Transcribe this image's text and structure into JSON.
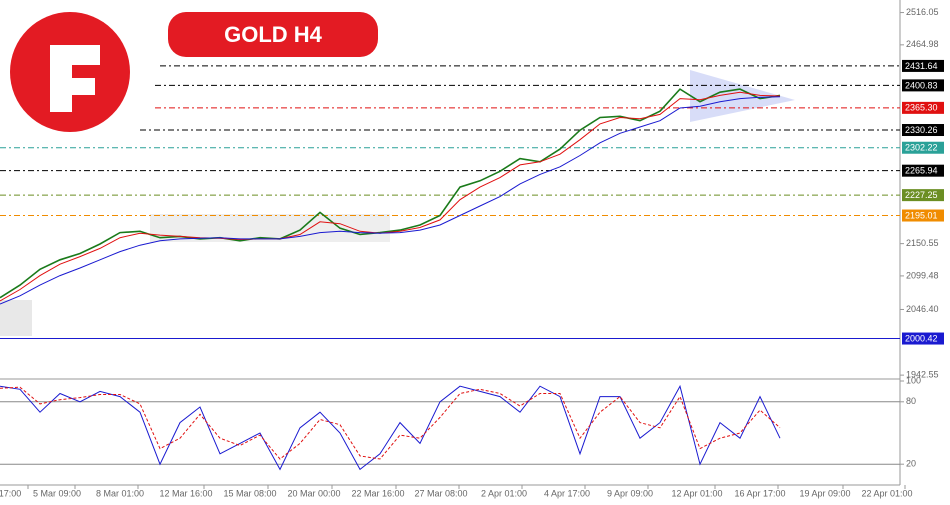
{
  "chart_data": [
    {
      "type": "line",
      "title": "GOLD H4",
      "ylim": [
        1938,
        2528
      ],
      "yticks": [
        2516.05,
        2464.98,
        2150.55,
        2099.48,
        {
          "value": 2046.4,
          "label": "2046.40"
        },
        1942.55
      ],
      "x_labels": [
        "17:00",
        "5 Mar 09:00",
        "8 Mar 01:00",
        "12 Mar 16:00",
        "15 Mar 08:00",
        "20 Mar 00:00",
        "22 Mar 16:00",
        "27 Mar 08:00",
        "2 Apr 01:00",
        "4 Apr 17:00",
        "9 Apr 09:00",
        "12 Apr 01:00",
        "16 Apr 17:00",
        "19 Apr 09:00",
        "22 Apr 01:00"
      ],
      "series": [
        {
          "color": "#1a7a1a",
          "values": [
            2065,
            2085,
            2110,
            2125,
            2135,
            2150,
            2168,
            2170,
            2160,
            2162,
            2158,
            2160,
            2155,
            2160,
            2158,
            2172,
            2200,
            2175,
            2165,
            2168,
            2172,
            2180,
            2195,
            2240,
            2250,
            2265,
            2285,
            2280,
            2300,
            2330,
            2350,
            2352,
            2345,
            2360,
            2395,
            2375,
            2390,
            2395,
            2380,
            2385
          ]
        },
        {
          "color": "#e01010",
          "values": [
            2060,
            2078,
            2100,
            2118,
            2130,
            2143,
            2160,
            2167,
            2164,
            2162,
            2160,
            2159,
            2157,
            2158,
            2158,
            2165,
            2185,
            2182,
            2170,
            2167,
            2170,
            2176,
            2188,
            2220,
            2240,
            2255,
            2275,
            2280,
            2292,
            2315,
            2340,
            2350,
            2348,
            2355,
            2380,
            2378,
            2385,
            2390,
            2385,
            2384
          ]
        },
        {
          "color": "#1a1ad0",
          "values": [
            2055,
            2068,
            2085,
            2100,
            2112,
            2125,
            2138,
            2148,
            2155,
            2158,
            2159,
            2160,
            2158,
            2158,
            2158,
            2162,
            2168,
            2170,
            2168,
            2167,
            2168,
            2172,
            2180,
            2195,
            2210,
            2225,
            2245,
            2260,
            2272,
            2290,
            2310,
            2325,
            2335,
            2345,
            2365,
            2368,
            2375,
            2380,
            2382,
            2383
          ]
        }
      ],
      "levels": [
        {
          "value": 2431.64,
          "label": "2431.64",
          "color": "#000000"
        },
        {
          "value": 2400.83,
          "label": "2400.83",
          "color": "#000000"
        },
        {
          "value": 2365.3,
          "label": "2365.30",
          "color": "#e01010"
        },
        {
          "value": 2330.26,
          "label": "2330.26",
          "color": "#000000"
        },
        {
          "value": 2302.22,
          "label": "2302.22",
          "color": "#2aa198"
        },
        {
          "value": 2265.94,
          "label": "2265.94",
          "color": "#000000"
        },
        {
          "value": 2227.25,
          "label": "2227.25",
          "color": "#6b8e23"
        },
        {
          "value": 2195.01,
          "label": "2195.01",
          "color": "#f08c00"
        },
        {
          "value": 2000.42,
          "label": "2000.42",
          "color": "#1a1ad0"
        }
      ]
    },
    {
      "type": "line",
      "ylim": [
        0,
        100
      ],
      "yticks": [
        100,
        80,
        20
      ],
      "series": [
        {
          "color": "#1a1ad0",
          "values": [
            95,
            92,
            70,
            88,
            80,
            90,
            85,
            70,
            20,
            60,
            75,
            30,
            40,
            50,
            15,
            55,
            70,
            50,
            15,
            30,
            60,
            40,
            80,
            95,
            90,
            85,
            70,
            95,
            85,
            30,
            85,
            85,
            45,
            60,
            95,
            20,
            60,
            45,
            85,
            45
          ]
        },
        {
          "color": "#e01010",
          "values": [
            93,
            94,
            78,
            82,
            84,
            87,
            87,
            78,
            35,
            45,
            68,
            45,
            38,
            48,
            25,
            40,
            63,
            58,
            28,
            25,
            48,
            45,
            65,
            88,
            92,
            88,
            76,
            88,
            88,
            45,
            70,
            85,
            60,
            55,
            85,
            35,
            45,
            50,
            72,
            55
          ]
        }
      ]
    }
  ]
}
